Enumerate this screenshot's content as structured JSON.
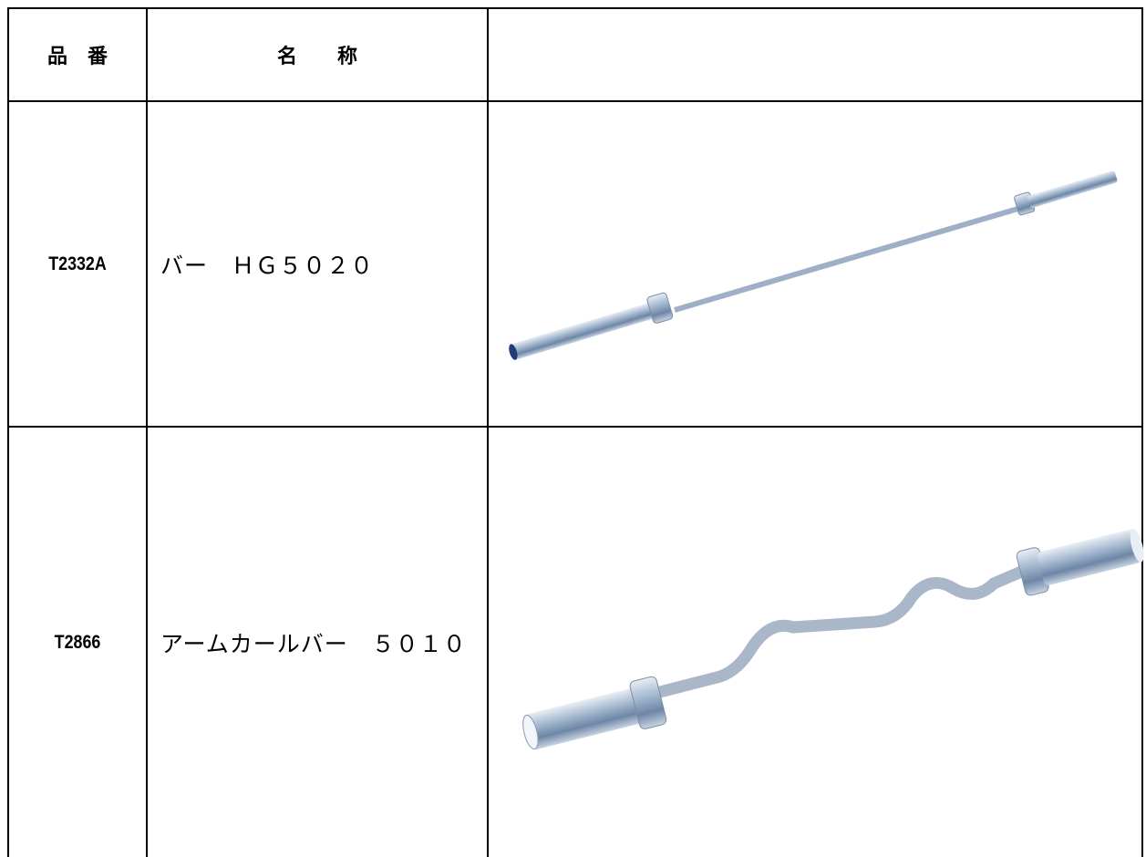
{
  "table": {
    "header": [
      "品　番",
      "名　　称"
    ],
    "rows": [
      [
        "T2332A",
        "バー　ＨＧ５０２０"
      ],
      [
        "T2866",
        "アームカールバー　５０１０"
      ]
    ]
  }
}
